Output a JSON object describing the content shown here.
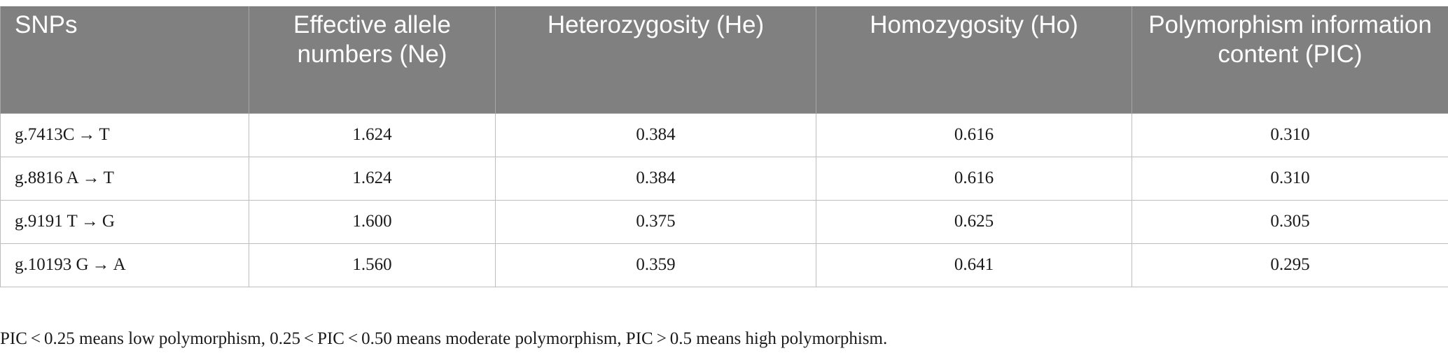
{
  "table": {
    "headers": [
      "SNPs",
      "Effective allele numbers (Ne)",
      "Heterozygosity (He)",
      "Homozygosity (Ho)",
      "Polymorphism information content (PIC)"
    ],
    "rows": [
      [
        "g.7413C → T",
        "1.624",
        "0.384",
        "0.616",
        "0.310"
      ],
      [
        "g.8816 A → T",
        "1.624",
        "0.384",
        "0.616",
        "0.310"
      ],
      [
        "g.9191 T → G",
        "1.600",
        "0.375",
        "0.625",
        "0.305"
      ],
      [
        "g.10193 G → A",
        "1.560",
        "0.359",
        "0.641",
        "0.295"
      ]
    ]
  },
  "footnote": "PIC < 0.25 means low polymorphism, 0.25 < PIC < 0.50 means moderate polymorphism, PIC > 0.5 means high polymorphism."
}
